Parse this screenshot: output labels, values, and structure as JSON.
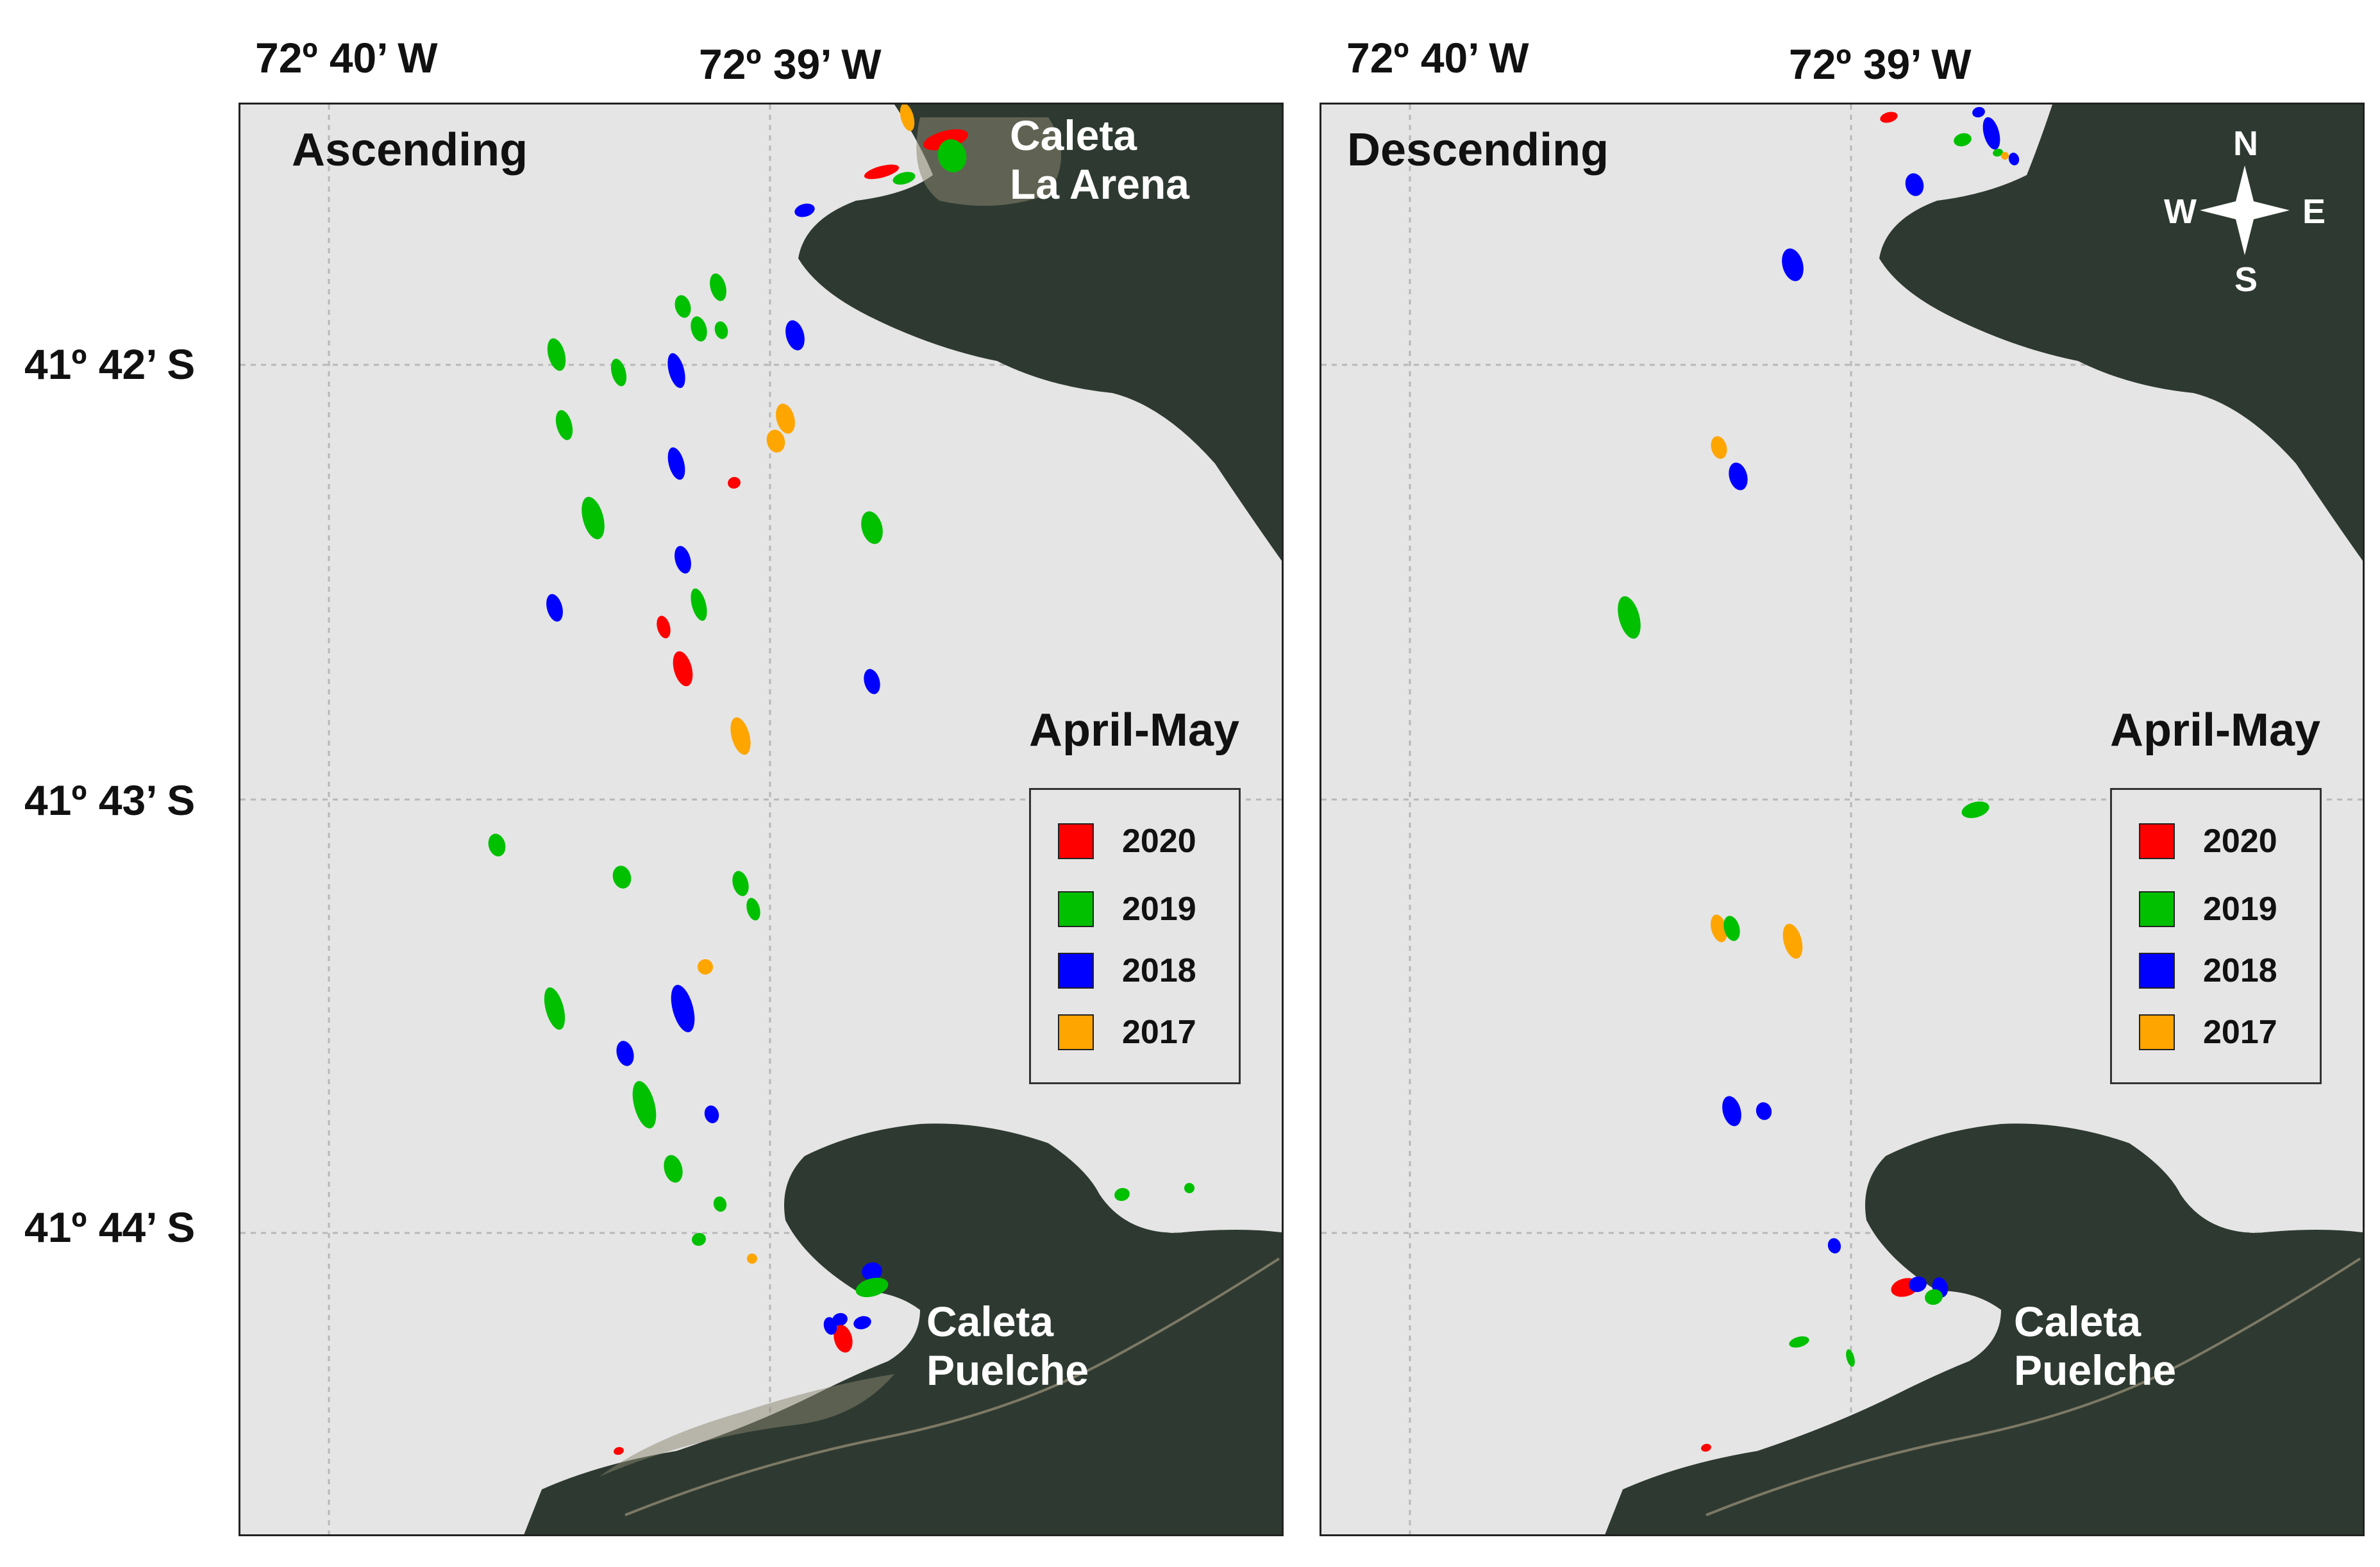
{
  "coordinates": {
    "lon_1": "72º 40’ W",
    "lon_2": "72º 39’ W",
    "lat_1": "41º 42’ S",
    "lat_2": "41º 43’ S",
    "lat_3": "41º 44’ S"
  },
  "panels": {
    "left": {
      "title": "Ascending",
      "place_north_1": "Caleta",
      "place_north_2": "La Arena",
      "place_south_1": "Caleta",
      "place_south_2": "Puelche"
    },
    "right": {
      "title": "Descending",
      "place_south_1": "Caleta",
      "place_south_2": "Puelche"
    }
  },
  "legend": {
    "title": "April-May",
    "items": [
      {
        "label": "2020",
        "color": "#ff0000"
      },
      {
        "label": "2019",
        "color": "#00c000"
      },
      {
        "label": "2018",
        "color": "#0000ff"
      },
      {
        "label": "2017",
        "color": "#ffa500"
      }
    ]
  },
  "compass": {
    "n": "N",
    "s": "S",
    "e": "E",
    "w": "W"
  },
  "colors": {
    "water": "#e5e5e5",
    "land": "#2f3b33",
    "grid": "#b8b8b8"
  }
}
